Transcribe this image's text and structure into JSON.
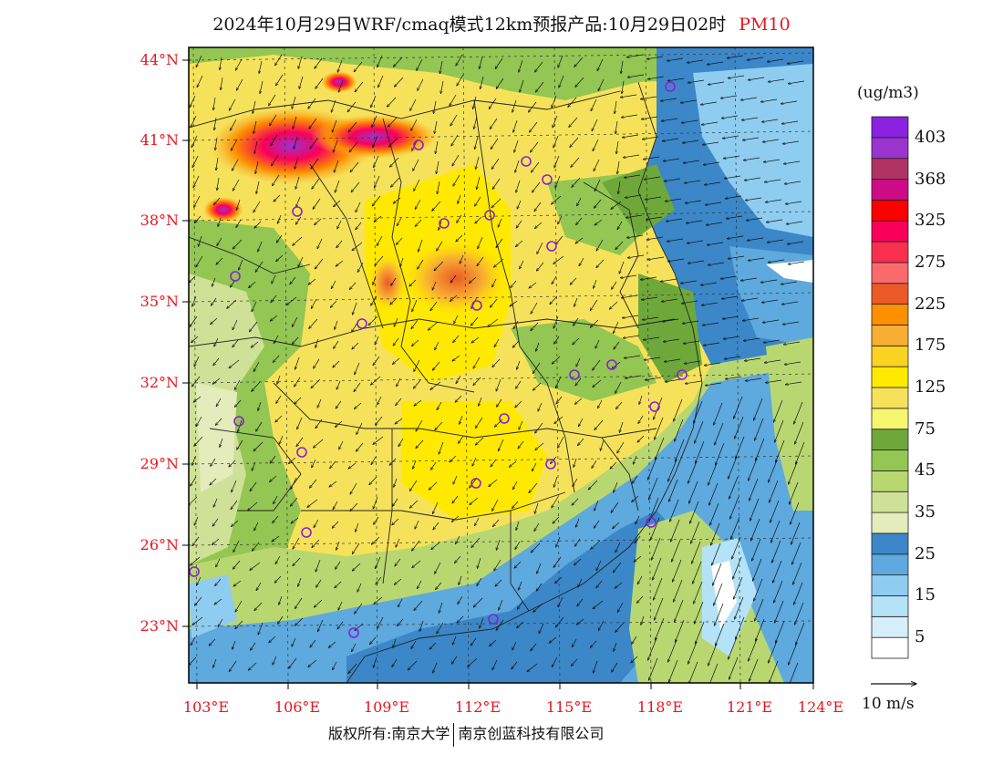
{
  "title": {
    "main": "2024年10月29日WRF/cmaq模式12km预报产品:10月29日02时",
    "species": "PM10",
    "species_color": "#e8141e"
  },
  "map": {
    "lat_labels": [
      "44°N",
      "41°N",
      "38°N",
      "35°N",
      "32°N",
      "29°N",
      "26°N",
      "23°N"
    ],
    "lon_labels": [
      "103°E",
      "106°E",
      "109°E",
      "112°E",
      "115°E",
      "118°E",
      "121°E",
      "124°E"
    ],
    "label_color": "#e8141e",
    "gridline_style": "dashed",
    "extent": {
      "lon": [
        102.8,
        124
      ],
      "lat": [
        21.0,
        44.3
      ]
    },
    "city_markers_color": "#8a1fd6"
  },
  "colorbar": {
    "unit": "(ug/m3)",
    "bins": [
      {
        "color": "#ffffff"
      },
      {
        "color": "#d6eef9"
      },
      {
        "color": "#b4e2f6"
      },
      {
        "color": "#8fcdf0"
      },
      {
        "color": "#5ea9dd"
      },
      {
        "color": "#3b87c8"
      },
      {
        "color": "#e4ecbb"
      },
      {
        "color": "#cfe197"
      },
      {
        "color": "#b9d771"
      },
      {
        "color": "#93c653"
      },
      {
        "color": "#6ea83a"
      },
      {
        "color": "#f7f66f"
      },
      {
        "color": "#f6e25a"
      },
      {
        "color": "#ffe900"
      },
      {
        "color": "#fbd21f"
      },
      {
        "color": "#f8ae33"
      },
      {
        "color": "#fd8f00"
      },
      {
        "color": "#eb5a27"
      },
      {
        "color": "#fa6a6a"
      },
      {
        "color": "#f92f4e"
      },
      {
        "color": "#f9005a"
      },
      {
        "color": "#ff0000"
      },
      {
        "color": "#cc0b86"
      },
      {
        "color": "#b03363"
      },
      {
        "color": "#9934cf"
      },
      {
        "color": "#8a22e0"
      }
    ],
    "labels": [
      "5",
      "15",
      "25",
      "35",
      "45",
      "75",
      "125",
      "175",
      "225",
      "275",
      "325",
      "368",
      "403"
    ]
  },
  "vector_reference": "10 m/s",
  "footer": {
    "copyright": "版权所有:南京大学",
    "company": "南京创蓝科技有限公司"
  }
}
